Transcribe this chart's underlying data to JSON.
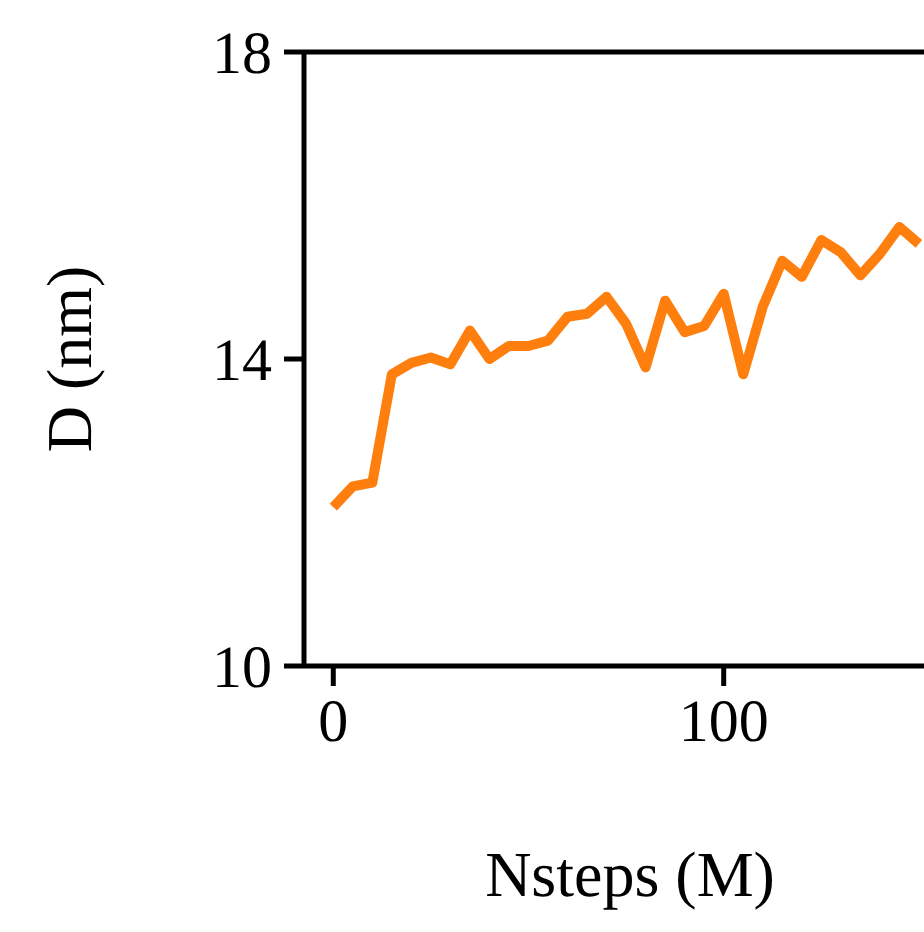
{
  "chart_data": {
    "type": "line",
    "xlabel": "Nsteps (M)",
    "ylabel": "D (nm)",
    "x": [
      0,
      5,
      10,
      15,
      20,
      25,
      30,
      35,
      40,
      45,
      50,
      55,
      60,
      65,
      70,
      75,
      80,
      85,
      90,
      95,
      100,
      105,
      110,
      115,
      120,
      125,
      130,
      135,
      140,
      145,
      150
    ],
    "series": [
      {
        "color": "#ff7f0e",
        "values": [
          12.07,
          12.34,
          12.39,
          13.8,
          13.95,
          14.02,
          13.93,
          14.37,
          14.0,
          14.17,
          14.17,
          14.24,
          14.55,
          14.59,
          14.81,
          14.46,
          13.89,
          14.76,
          14.35,
          14.43,
          14.85,
          13.8,
          14.68,
          15.28,
          15.07,
          15.55,
          15.39,
          15.09,
          15.37,
          15.72,
          15.5
        ]
      }
    ],
    "xlim": [
      -7.5,
      159.5
    ],
    "xticks": [
      0,
      100
    ],
    "ylim": [
      10,
      18
    ],
    "yticks": [
      10,
      14,
      18
    ],
    "grid": false,
    "legend": false,
    "marker": "none",
    "line_style": "solid"
  }
}
